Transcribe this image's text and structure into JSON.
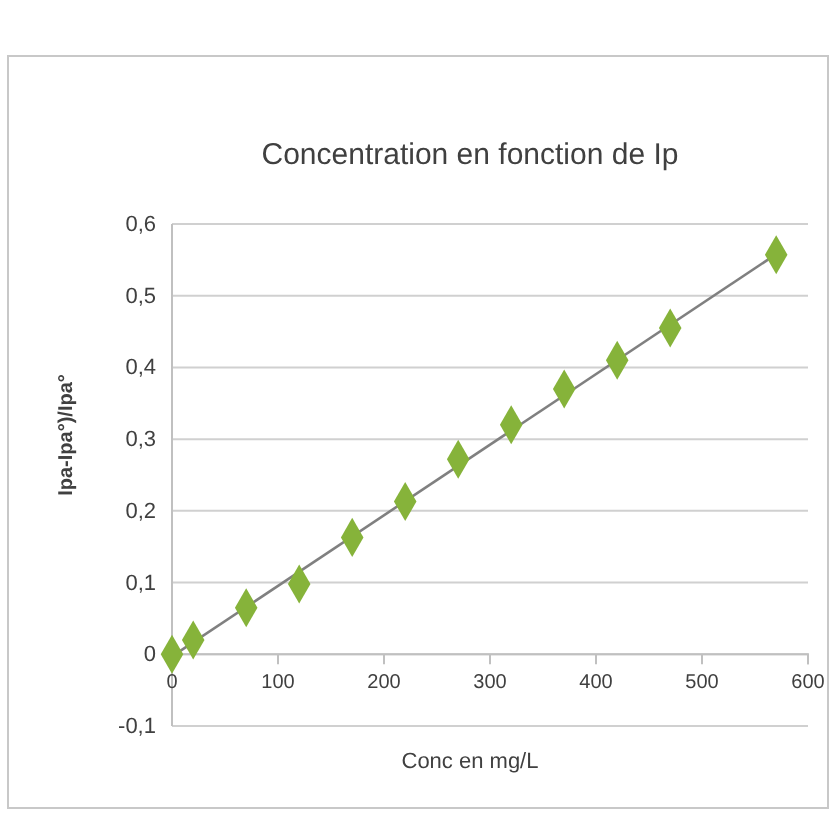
{
  "chart_data": {
    "type": "scatter",
    "title": "Concentration en fonction de Ip",
    "xlabel": "Conc en mg/L",
    "ylabel": "Ipa-Ipa°)/Ipa°",
    "x": [
      0,
      20,
      70,
      120,
      170,
      220,
      270,
      320,
      370,
      420,
      470,
      570
    ],
    "series": [
      {
        "marker": "diamond",
        "color": "#86b33a",
        "values": [
          0,
          0.02,
          0.065,
          0.098,
          0.163,
          0.213,
          0.272,
          0.32,
          0.37,
          0.41,
          0.455,
          0.557
        ]
      },
      {
        "type": "line",
        "marker": "none",
        "color": "#808080",
        "x": [
          0,
          570
        ],
        "values": [
          -0.003,
          0.558
        ]
      }
    ],
    "xlim": [
      0,
      600
    ],
    "xticks": [
      0,
      100,
      200,
      300,
      400,
      500,
      600
    ],
    "ylim": [
      -0.1,
      0.6
    ],
    "yticks": [
      {
        "value": -0.1,
        "label": "-0,1"
      },
      0,
      {
        "value": 0.1,
        "label": "0,1"
      },
      {
        "value": 0.2,
        "label": "0,2"
      },
      {
        "value": 0.3,
        "label": "0,3"
      },
      {
        "value": 0.4,
        "label": "0,4"
      },
      {
        "value": 0.5,
        "label": "0,5"
      },
      {
        "value": 0.6,
        "label": "0,6"
      }
    ],
    "grid": "y"
  }
}
